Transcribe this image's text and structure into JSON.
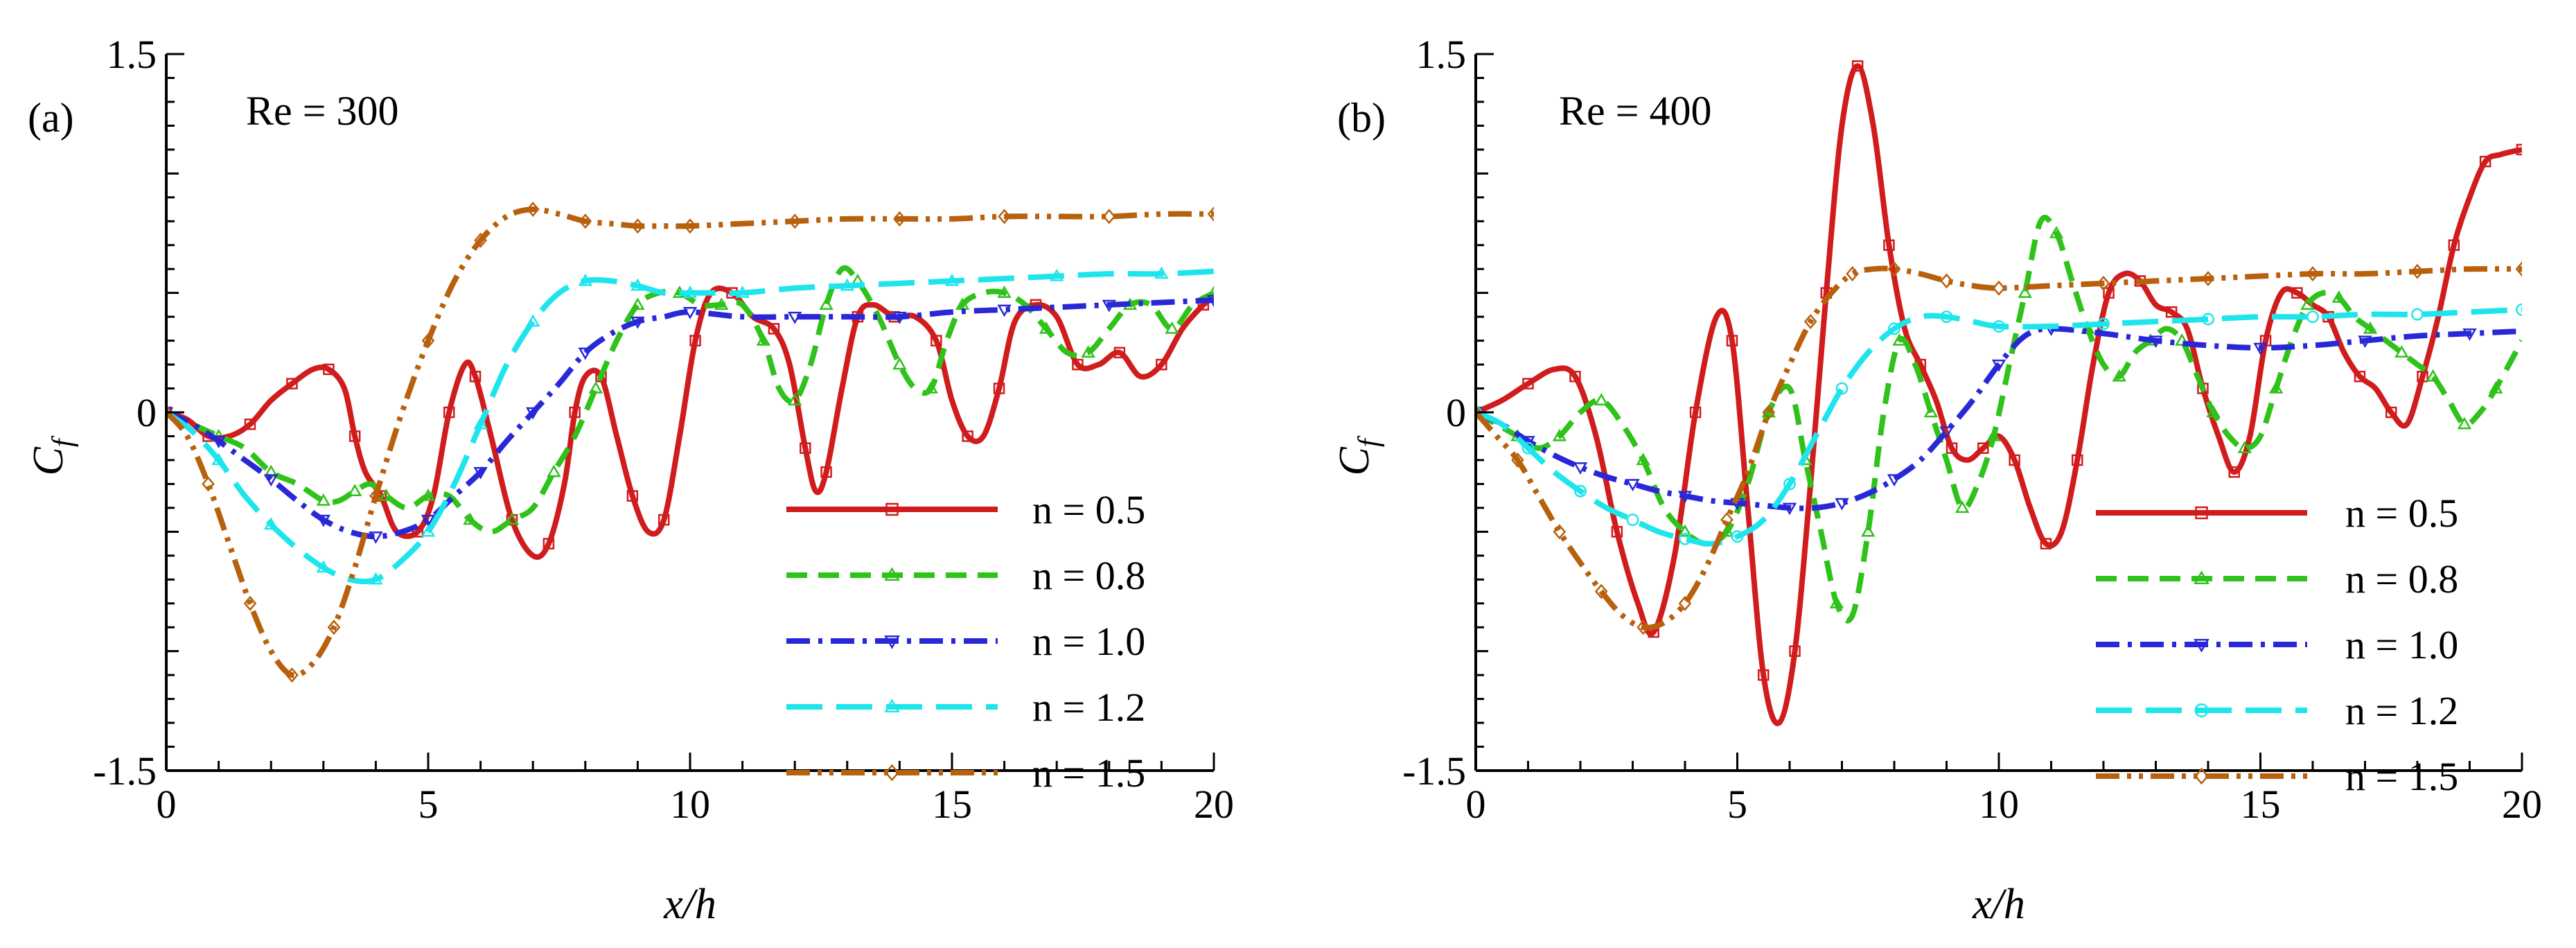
{
  "chart_data": [
    {
      "type": "line",
      "panel_label": "(a)",
      "annotation": "Re = 300",
      "xlabel": "x/h",
      "ylabel": "C",
      "ylabel_sub": "f",
      "xlim": [
        0,
        20
      ],
      "ylim": [
        -1.5,
        1.5
      ],
      "xticks": [
        "0",
        "5",
        "10",
        "15",
        "20"
      ],
      "yticks": [
        "1.5",
        "0",
        "-1.5"
      ],
      "legend_position": "bottom-right",
      "series": [
        {
          "name": "n = 0.5",
          "color": "#d01c1c",
          "dash": "solid",
          "marker": "square",
          "x": [
            0,
            0.4,
            0.8,
            1.2,
            1.6,
            2,
            2.4,
            2.8,
            3.1,
            3.4,
            3.6,
            3.8,
            4.1,
            4.4,
            4.8,
            5.1,
            5.4,
            5.7,
            5.9,
            6.2,
            6.6,
            7,
            7.3,
            7.6,
            7.8,
            8,
            8.3,
            8.6,
            8.9,
            9.2,
            9.5,
            9.8,
            10.1,
            10.4,
            10.8,
            11.2,
            11.6,
            11.9,
            12.2,
            12.4,
            12.6,
            12.9,
            13.2,
            13.5,
            13.9,
            14.3,
            14.7,
            15,
            15.3,
            15.6,
            15.9,
            16.2,
            16.6,
            17,
            17.4,
            17.8,
            18.2,
            18.6,
            19,
            19.4,
            19.8,
            20
          ],
          "y": [
            0,
            -0.03,
            -0.1,
            -0.1,
            -0.05,
            0.05,
            0.12,
            0.18,
            0.18,
            0.1,
            -0.1,
            -0.25,
            -0.35,
            -0.5,
            -0.5,
            -0.35,
            0,
            0.2,
            0.15,
            -0.1,
            -0.45,
            -0.6,
            -0.55,
            -0.3,
            0,
            0.15,
            0.15,
            -0.1,
            -0.35,
            -0.5,
            -0.45,
            -0.1,
            0.3,
            0.5,
            0.5,
            0.4,
            0.35,
            0.2,
            -0.15,
            -0.33,
            -0.25,
            0.1,
            0.4,
            0.45,
            0.4,
            0.4,
            0.3,
            0.05,
            -0.1,
            -0.1,
            0.1,
            0.38,
            0.45,
            0.4,
            0.2,
            0.2,
            0.25,
            0.15,
            0.2,
            0.35,
            0.45,
            0.48
          ]
        },
        {
          "name": "n = 0.8",
          "color": "#2ec21a",
          "dash": "dashed",
          "marker": "triangle",
          "x": [
            0,
            0.5,
            1,
            1.5,
            2,
            2.5,
            3,
            3.3,
            3.6,
            3.9,
            4.2,
            4.6,
            5,
            5.4,
            5.8,
            6.2,
            6.6,
            7,
            7.4,
            7.8,
            8.2,
            8.6,
            9,
            9.4,
            9.8,
            10.2,
            10.6,
            11,
            11.4,
            11.7,
            12,
            12.3,
            12.6,
            12.9,
            13.2,
            13.6,
            14,
            14.3,
            14.6,
            14.9,
            15.2,
            15.6,
            16,
            16.4,
            16.8,
            17.2,
            17.6,
            18,
            18.4,
            18.8,
            19.2,
            19.6,
            20
          ],
          "y": [
            0,
            -0.05,
            -0.1,
            -0.15,
            -0.25,
            -0.3,
            -0.37,
            -0.37,
            -0.33,
            -0.3,
            -0.35,
            -0.4,
            -0.35,
            -0.35,
            -0.45,
            -0.5,
            -0.45,
            -0.4,
            -0.25,
            -0.1,
            0.1,
            0.3,
            0.45,
            0.5,
            0.5,
            0.45,
            0.45,
            0.45,
            0.3,
            0.1,
            0.05,
            0.2,
            0.45,
            0.6,
            0.55,
            0.4,
            0.2,
            0.1,
            0.1,
            0.3,
            0.45,
            0.5,
            0.5,
            0.45,
            0.35,
            0.25,
            0.25,
            0.35,
            0.45,
            0.45,
            0.35,
            0.45,
            0.5
          ]
        },
        {
          "name": "n = 1.0",
          "color": "#2828d8",
          "dash": "dashdot",
          "marker": "invtriangle",
          "x": [
            0,
            0.5,
            1,
            1.5,
            2,
            2.5,
            3,
            3.5,
            4,
            4.5,
            5,
            5.5,
            6,
            6.5,
            7,
            7.5,
            8,
            8.5,
            9,
            9.5,
            10,
            11,
            12,
            13,
            14,
            15,
            16,
            17,
            18,
            19,
            20
          ],
          "y": [
            0,
            -0.05,
            -0.12,
            -0.2,
            -0.28,
            -0.37,
            -0.45,
            -0.5,
            -0.52,
            -0.5,
            -0.45,
            -0.35,
            -0.25,
            -0.12,
            0,
            0.12,
            0.25,
            0.33,
            0.38,
            0.4,
            0.42,
            0.4,
            0.4,
            0.4,
            0.4,
            0.42,
            0.43,
            0.44,
            0.45,
            0.46,
            0.47
          ]
        },
        {
          "name": "n = 1.2",
          "color": "#1ee5ec",
          "dash": "longdash",
          "marker": "triangle",
          "x": [
            0,
            0.5,
            1,
            1.5,
            2,
            2.5,
            3,
            3.5,
            4,
            4.5,
            5,
            5.5,
            6,
            6.5,
            7,
            7.5,
            8,
            8.5,
            9,
            9.5,
            10,
            10.5,
            11,
            12,
            13,
            14,
            15,
            16,
            17,
            18,
            19,
            20
          ],
          "y": [
            0,
            -0.08,
            -0.2,
            -0.35,
            -0.47,
            -0.57,
            -0.65,
            -0.7,
            -0.7,
            -0.62,
            -0.5,
            -0.3,
            -0.05,
            0.2,
            0.38,
            0.5,
            0.55,
            0.55,
            0.53,
            0.5,
            0.5,
            0.5,
            0.5,
            0.52,
            0.53,
            0.54,
            0.55,
            0.56,
            0.57,
            0.58,
            0.58,
            0.59
          ]
        },
        {
          "name": "n = 1.5",
          "color": "#b8600c",
          "dash": "dashdotdot",
          "marker": "diamond",
          "x": [
            0,
            0.4,
            0.8,
            1.2,
            1.6,
            2,
            2.4,
            2.8,
            3.2,
            3.6,
            4,
            4.5,
            5,
            5.5,
            6,
            6.5,
            7,
            7.5,
            8,
            8.5,
            9,
            9.5,
            10,
            11,
            12,
            13,
            14,
            15,
            16,
            17,
            18,
            19,
            20
          ],
          "y": [
            0,
            -0.1,
            -0.3,
            -0.55,
            -0.8,
            -1,
            -1.1,
            -1.05,
            -0.9,
            -0.65,
            -0.35,
            0,
            0.3,
            0.55,
            0.72,
            0.82,
            0.85,
            0.83,
            0.8,
            0.79,
            0.78,
            0.78,
            0.78,
            0.79,
            0.8,
            0.81,
            0.81,
            0.81,
            0.82,
            0.82,
            0.82,
            0.83,
            0.83
          ]
        }
      ]
    },
    {
      "type": "line",
      "panel_label": "(b)",
      "annotation": "Re = 400",
      "xlabel": "x/h",
      "ylabel": "C",
      "ylabel_sub": "f",
      "xlim": [
        0,
        20
      ],
      "ylim": [
        -1.5,
        1.5
      ],
      "xticks": [
        "0",
        "5",
        "10",
        "15",
        "20"
      ],
      "yticks": [
        "1.5",
        "0",
        "-1.5"
      ],
      "legend_position": "bottom-right",
      "series": [
        {
          "name": "n = 0.5",
          "color": "#d01c1c",
          "dash": "solid",
          "marker": "square",
          "x": [
            0,
            0.5,
            1,
            1.5,
            1.9,
            2.3,
            2.7,
            3.1,
            3.4,
            3.8,
            4.2,
            4.6,
            4.9,
            5.2,
            5.5,
            5.8,
            6.1,
            6.4,
            6.7,
            7,
            7.3,
            7.6,
            7.9,
            8.2,
            8.5,
            8.8,
            9.1,
            9.4,
            9.7,
            10,
            10.3,
            10.6,
            10.9,
            11.2,
            11.5,
            11.8,
            12.1,
            12.4,
            12.7,
            13,
            13.3,
            13.6,
            13.9,
            14.2,
            14.5,
            14.8,
            15.1,
            15.4,
            15.7,
            16,
            16.3,
            16.6,
            16.9,
            17.2,
            17.5,
            17.8,
            18.1,
            18.4,
            18.7,
            19,
            19.3,
            19.6,
            20
          ],
          "y": [
            0,
            0.05,
            0.12,
            0.18,
            0.15,
            -0.1,
            -0.5,
            -0.8,
            -0.92,
            -0.6,
            0,
            0.4,
            0.3,
            -0.4,
            -1.1,
            -1.3,
            -1.0,
            -0.3,
            0.5,
            1.2,
            1.45,
            1.2,
            0.7,
            0.35,
            0.2,
            0.05,
            -0.15,
            -0.2,
            -0.15,
            -0.1,
            -0.2,
            -0.4,
            -0.55,
            -0.5,
            -0.2,
            0.2,
            0.5,
            0.58,
            0.55,
            0.45,
            0.42,
            0.35,
            0.1,
            -0.1,
            -0.25,
            -0.1,
            0.3,
            0.5,
            0.5,
            0.45,
            0.4,
            0.25,
            0.15,
            0.1,
            0.0,
            -0.05,
            0.15,
            0.4,
            0.7,
            0.9,
            1.05,
            1.08,
            1.1
          ]
        },
        {
          "name": "n = 0.8",
          "color": "#2ec21a",
          "dash": "dashed",
          "marker": "triangle",
          "x": [
            0,
            0.4,
            0.8,
            1.2,
            1.6,
            2,
            2.4,
            2.8,
            3.2,
            3.6,
            4,
            4.4,
            4.8,
            5.2,
            5.6,
            6,
            6.3,
            6.6,
            6.9,
            7.2,
            7.5,
            7.8,
            8.1,
            8.4,
            8.7,
            9,
            9.3,
            9.6,
            9.9,
            10.2,
            10.5,
            10.8,
            11.1,
            11.4,
            11.7,
            12,
            12.3,
            12.6,
            12.9,
            13.2,
            13.5,
            13.8,
            14.1,
            14.4,
            14.7,
            15,
            15.3,
            15.6,
            15.9,
            16.2,
            16.5,
            16.8,
            17.1,
            17.4,
            17.7,
            18,
            18.3,
            18.6,
            18.9,
            19.2,
            19.5,
            20
          ],
          "y": [
            0,
            -0.05,
            -0.1,
            -0.15,
            -0.1,
            0,
            0.05,
            -0.05,
            -0.2,
            -0.4,
            -0.5,
            -0.55,
            -0.5,
            -0.3,
            0,
            0.1,
            -0.2,
            -0.5,
            -0.8,
            -0.85,
            -0.5,
            0,
            0.3,
            0.2,
            0,
            -0.2,
            -0.4,
            -0.3,
            -0.1,
            0.2,
            0.5,
            0.8,
            0.75,
            0.55,
            0.35,
            0.2,
            0.15,
            0.25,
            0.3,
            0.35,
            0.3,
            0.15,
            0.0,
            -0.1,
            -0.15,
            -0.1,
            0.1,
            0.3,
            0.45,
            0.5,
            0.48,
            0.4,
            0.35,
            0.3,
            0.25,
            0.2,
            0.15,
            0.05,
            -0.05,
            0.0,
            0.1,
            0.3
          ]
        },
        {
          "name": "n = 1.0",
          "color": "#2828d8",
          "dash": "dashdot",
          "marker": "invtriangle",
          "x": [
            0,
            0.5,
            1,
            1.5,
            2,
            2.5,
            3,
            3.5,
            4,
            4.5,
            5,
            5.5,
            6,
            6.5,
            7,
            7.5,
            8,
            8.5,
            9,
            9.5,
            10,
            10.5,
            11,
            12,
            13,
            14,
            15,
            16,
            17,
            18,
            19,
            20
          ],
          "y": [
            0,
            -0.05,
            -0.12,
            -0.18,
            -0.23,
            -0.27,
            -0.3,
            -0.33,
            -0.35,
            -0.37,
            -0.38,
            -0.39,
            -0.4,
            -0.4,
            -0.38,
            -0.34,
            -0.28,
            -0.2,
            -0.08,
            0.05,
            0.2,
            0.32,
            0.35,
            0.33,
            0.3,
            0.28,
            0.27,
            0.28,
            0.3,
            0.32,
            0.33,
            0.34
          ]
        },
        {
          "name": "n = 1.2",
          "color": "#1ee5ec",
          "dash": "longdash",
          "marker": "circle",
          "x": [
            0,
            0.5,
            1,
            1.5,
            2,
            2.5,
            3,
            3.5,
            4,
            4.5,
            5,
            5.5,
            6,
            6.5,
            7,
            7.5,
            8,
            8.5,
            9,
            9.5,
            10,
            11,
            12,
            13,
            14,
            15,
            16,
            17,
            18,
            19,
            20
          ],
          "y": [
            0,
            -0.05,
            -0.15,
            -0.25,
            -0.33,
            -0.4,
            -0.45,
            -0.5,
            -0.53,
            -0.55,
            -0.52,
            -0.45,
            -0.3,
            -0.1,
            0.1,
            0.25,
            0.35,
            0.4,
            0.4,
            0.38,
            0.36,
            0.36,
            0.37,
            0.38,
            0.39,
            0.4,
            0.4,
            0.41,
            0.41,
            0.42,
            0.43
          ]
        },
        {
          "name": "n = 1.5",
          "color": "#b8600c",
          "dash": "dashdotdot",
          "marker": "diamond",
          "x": [
            0,
            0.4,
            0.8,
            1.2,
            1.6,
            2,
            2.4,
            2.8,
            3.2,
            3.6,
            4,
            4.4,
            4.8,
            5.2,
            5.6,
            6,
            6.4,
            6.8,
            7.2,
            7.6,
            8,
            8.5,
            9,
            9.5,
            10,
            11,
            12,
            13,
            14,
            15,
            16,
            17,
            18,
            19,
            20
          ],
          "y": [
            0,
            -0.1,
            -0.2,
            -0.35,
            -0.5,
            -0.63,
            -0.75,
            -0.85,
            -0.9,
            -0.88,
            -0.8,
            -0.65,
            -0.45,
            -0.25,
            0,
            0.2,
            0.38,
            0.5,
            0.58,
            0.6,
            0.6,
            0.58,
            0.55,
            0.53,
            0.52,
            0.53,
            0.54,
            0.55,
            0.56,
            0.57,
            0.58,
            0.58,
            0.59,
            0.6,
            0.6
          ]
        }
      ]
    }
  ]
}
